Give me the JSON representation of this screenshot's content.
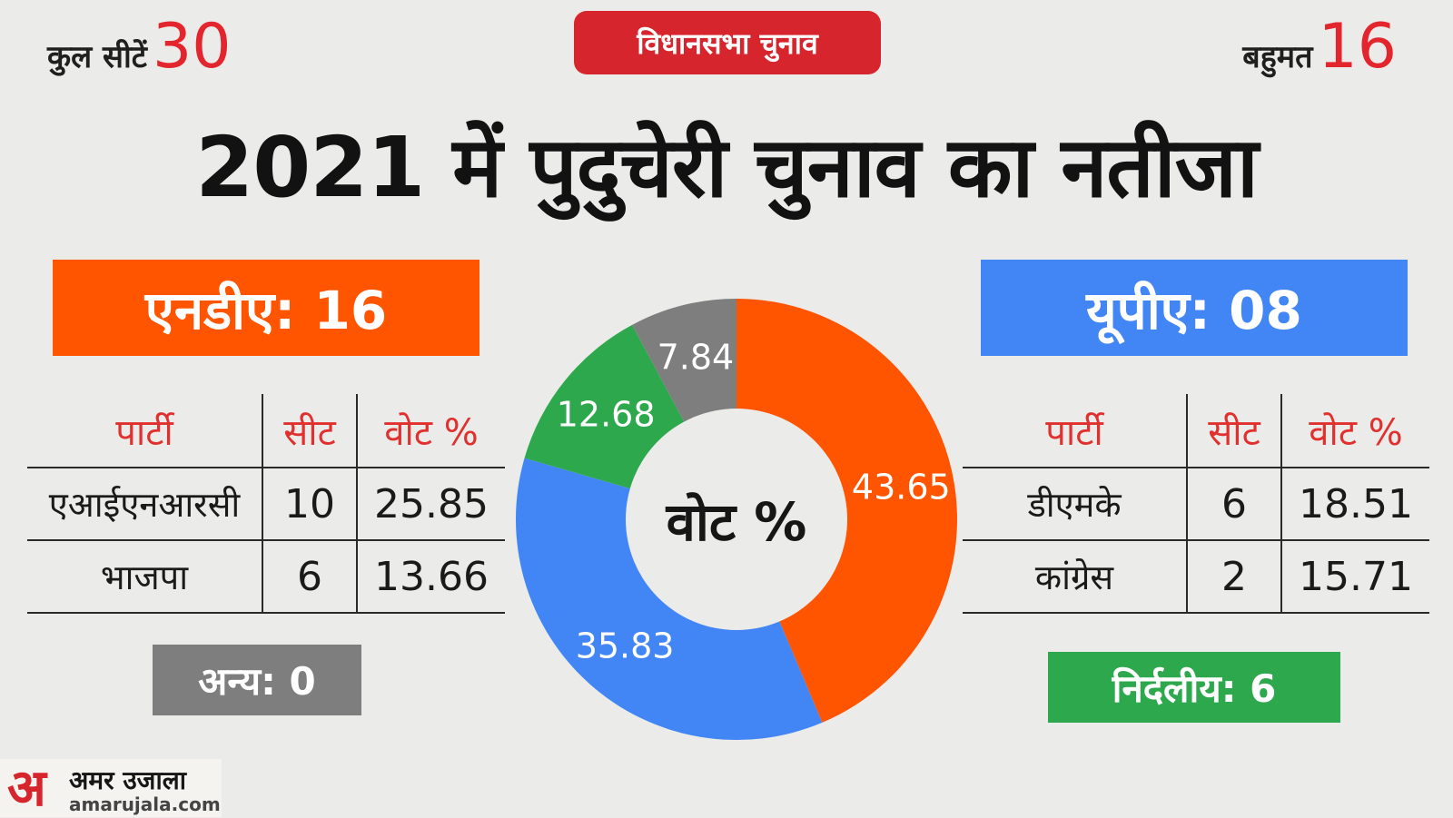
{
  "header": {
    "total_seats_label": "कुल सीटें",
    "total_seats": "30",
    "majority_label": "बहुमत",
    "majority": "16",
    "tag": "विधानसभा चुनाव",
    "title": "2021 में पुदुचेरी चुनाव का नतीजा"
  },
  "nda": {
    "label": "एनडीए: 16",
    "columns": [
      "पार्टी",
      "सीट",
      "वोट %"
    ],
    "rows": [
      [
        "एआईएनआरसी",
        "10",
        "25.85"
      ],
      [
        "भाजपा",
        "6",
        "13.66"
      ]
    ]
  },
  "upa": {
    "label": "यूपीए: 08",
    "columns": [
      "पार्टी",
      "सीट",
      "वोट %"
    ],
    "rows": [
      [
        "डीएमके",
        "6",
        "18.51"
      ],
      [
        "कांग्रेस",
        "2",
        "15.71"
      ]
    ]
  },
  "others": {
    "label": "अन्य: 0"
  },
  "independent": {
    "label": "निर्दलीय: 6"
  },
  "brand": {
    "name": "अमर उजाला",
    "url": "amarujala.com",
    "mark": "अ"
  },
  "colors": {
    "nda": "#ff5400",
    "upa": "#4286f5",
    "independent": "#2ea84c",
    "others": "#7e7e7e",
    "accent": "#d6252d"
  },
  "chart_data": {
    "type": "pie",
    "center_label": "वोट %",
    "values": [
      43.65,
      35.83,
      12.68,
      7.84
    ],
    "colors": [
      "#ff5400",
      "#4286f5",
      "#2ea84c",
      "#7e7e7e"
    ],
    "labels": [
      "43.65",
      "35.83",
      "12.68",
      "7.84"
    ]
  }
}
